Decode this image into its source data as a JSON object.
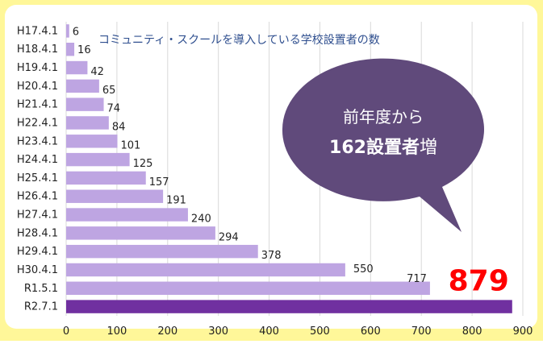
{
  "chart_data": {
    "type": "bar",
    "orientation": "horizontal",
    "title": "コミュニティ・スクールを導入している学校設置者の数",
    "categories": [
      "H17.4.1",
      "H18.4.1",
      "H19.4.1",
      "H20.4.1",
      "H21.4.1",
      "H22.4.1",
      "H23.4.1",
      "H24.4.1",
      "H25.4.1",
      "H26.4.1",
      "H27.4.1",
      "H28.4.1",
      "H29.4.1",
      "H30.4.1",
      "R1.5.1",
      "R2.7.1"
    ],
    "values": [
      6,
      16,
      42,
      65,
      74,
      84,
      101,
      125,
      157,
      191,
      240,
      294,
      378,
      550,
      717,
      879
    ],
    "colors": [
      "#bea5e2",
      "#bea5e2",
      "#bea5e2",
      "#bea5e2",
      "#bea5e2",
      "#bea5e2",
      "#bea5e2",
      "#bea5e2",
      "#bea5e2",
      "#bea5e2",
      "#bea5e2",
      "#bea5e2",
      "#bea5e2",
      "#bea5e2",
      "#bea5e2",
      "#7030a0"
    ],
    "xlim": [
      0,
      900
    ],
    "xticks": [
      0,
      100,
      200,
      300,
      400,
      500,
      600,
      700,
      800,
      900
    ],
    "grid": true,
    "callout": [
      "前年度から",
      "162設置者",
      "増"
    ]
  }
}
